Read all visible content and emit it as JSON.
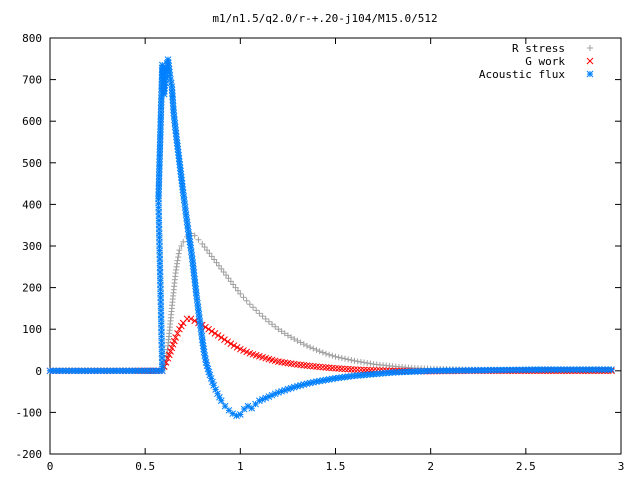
{
  "chart_data": {
    "type": "scatter",
    "title": "m1/n1.5/q2.0/r-+.20-j104/M15.0/512",
    "xlabel": "",
    "ylabel": "",
    "xlim": [
      0,
      3
    ],
    "ylim": [
      -200,
      800
    ],
    "x_ticks": [
      0,
      0.5,
      1,
      1.5,
      2,
      2.5,
      3
    ],
    "x_tick_labels": [
      "0",
      "0.5",
      "1",
      "1.5",
      "2",
      "2.5",
      "3"
    ],
    "y_ticks": [
      -200,
      -100,
      0,
      100,
      200,
      300,
      400,
      500,
      600,
      700,
      800
    ],
    "y_tick_labels": [
      "-200",
      "-100",
      "0",
      "100",
      "200",
      "300",
      "400",
      "500",
      "600",
      "700",
      "800"
    ],
    "grid": false,
    "legend_position": "top-right",
    "series": [
      {
        "name": "R stress",
        "marker": "plus",
        "color": "#a0a0a0",
        "points": [
          [
            0.0,
            0
          ],
          [
            0.2,
            0
          ],
          [
            0.4,
            0
          ],
          [
            0.59,
            0
          ],
          [
            0.6,
            5
          ],
          [
            0.61,
            25
          ],
          [
            0.62,
            60
          ],
          [
            0.63,
            105
          ],
          [
            0.64,
            150
          ],
          [
            0.65,
            195
          ],
          [
            0.66,
            235
          ],
          [
            0.67,
            265
          ],
          [
            0.68,
            290
          ],
          [
            0.7,
            310
          ],
          [
            0.72,
            322
          ],
          [
            0.74,
            330
          ],
          [
            0.76,
            325
          ],
          [
            0.8,
            305
          ],
          [
            0.85,
            275
          ],
          [
            0.9,
            245
          ],
          [
            0.95,
            215
          ],
          [
            1.0,
            185
          ],
          [
            1.05,
            160
          ],
          [
            1.1,
            138
          ],
          [
            1.15,
            118
          ],
          [
            1.2,
            100
          ],
          [
            1.25,
            85
          ],
          [
            1.3,
            72
          ],
          [
            1.35,
            60
          ],
          [
            1.4,
            50
          ],
          [
            1.45,
            41
          ],
          [
            1.5,
            34
          ],
          [
            1.6,
            24
          ],
          [
            1.7,
            16
          ],
          [
            1.8,
            11
          ],
          [
            1.9,
            7
          ],
          [
            2.0,
            5
          ],
          [
            2.2,
            3
          ],
          [
            2.4,
            2
          ],
          [
            2.6,
            2
          ],
          [
            2.8,
            2
          ],
          [
            2.95,
            2
          ]
        ]
      },
      {
        "name": "G work",
        "marker": "cross",
        "color": "#ff0000",
        "points": [
          [
            0.0,
            0
          ],
          [
            0.2,
            0
          ],
          [
            0.4,
            0
          ],
          [
            0.59,
            0
          ],
          [
            0.6,
            10
          ],
          [
            0.62,
            30
          ],
          [
            0.64,
            55
          ],
          [
            0.66,
            80
          ],
          [
            0.68,
            100
          ],
          [
            0.7,
            115
          ],
          [
            0.72,
            125
          ],
          [
            0.74,
            125
          ],
          [
            0.76,
            120
          ],
          [
            0.8,
            110
          ],
          [
            0.85,
            95
          ],
          [
            0.9,
            80
          ],
          [
            0.95,
            65
          ],
          [
            1.0,
            52
          ],
          [
            1.05,
            42
          ],
          [
            1.1,
            35
          ],
          [
            1.15,
            28
          ],
          [
            1.2,
            22
          ],
          [
            1.3,
            15
          ],
          [
            1.4,
            10
          ],
          [
            1.5,
            6
          ],
          [
            1.6,
            3
          ],
          [
            1.7,
            1
          ],
          [
            1.8,
            0
          ],
          [
            1.9,
            -1
          ],
          [
            2.0,
            -1
          ],
          [
            2.2,
            0
          ],
          [
            2.4,
            0
          ],
          [
            2.6,
            0
          ],
          [
            2.8,
            0
          ],
          [
            2.95,
            0
          ]
        ]
      },
      {
        "name": "Acoustic flux",
        "marker": "star",
        "color": "#0080ff",
        "points": [
          [
            0.0,
            0
          ],
          [
            0.1,
            0
          ],
          [
            0.2,
            0
          ],
          [
            0.3,
            0
          ],
          [
            0.4,
            0
          ],
          [
            0.5,
            0
          ],
          [
            0.59,
            0
          ],
          [
            0.57,
            413
          ],
          [
            0.59,
            735
          ],
          [
            0.6,
            665
          ],
          [
            0.61,
            730
          ],
          [
            0.62,
            748
          ],
          [
            0.63,
            710
          ],
          [
            0.64,
            683
          ],
          [
            0.65,
            620
          ],
          [
            0.66,
            578
          ],
          [
            0.67,
            540
          ],
          [
            0.68,
            503
          ],
          [
            0.69,
            465
          ],
          [
            0.7,
            428
          ],
          [
            0.71,
            393
          ],
          [
            0.72,
            358
          ],
          [
            0.73,
            325
          ],
          [
            0.74,
            295
          ],
          [
            0.75,
            260
          ],
          [
            0.76,
            220
          ],
          [
            0.77,
            180
          ],
          [
            0.78,
            145
          ],
          [
            0.79,
            110
          ],
          [
            0.8,
            75
          ],
          [
            0.81,
            45
          ],
          [
            0.82,
            20
          ],
          [
            0.84,
            -10
          ],
          [
            0.86,
            -35
          ],
          [
            0.88,
            -55
          ],
          [
            0.9,
            -72
          ],
          [
            0.92,
            -85
          ],
          [
            0.94,
            -95
          ],
          [
            0.96,
            -103
          ],
          [
            0.98,
            -108
          ],
          [
            1.0,
            -105
          ],
          [
            1.02,
            -92
          ],
          [
            1.04,
            -85
          ],
          [
            1.06,
            -90
          ],
          [
            1.08,
            -80
          ],
          [
            1.1,
            -72
          ],
          [
            1.15,
            -62
          ],
          [
            1.2,
            -52
          ],
          [
            1.25,
            -44
          ],
          [
            1.3,
            -37
          ],
          [
            1.35,
            -31
          ],
          [
            1.4,
            -26
          ],
          [
            1.45,
            -22
          ],
          [
            1.5,
            -18
          ],
          [
            1.6,
            -12
          ],
          [
            1.7,
            -8
          ],
          [
            1.8,
            -4
          ],
          [
            1.9,
            -2
          ],
          [
            2.0,
            0
          ],
          [
            2.2,
            1
          ],
          [
            2.4,
            2
          ],
          [
            2.6,
            3
          ],
          [
            2.8,
            3
          ],
          [
            2.95,
            3
          ]
        ]
      }
    ]
  }
}
